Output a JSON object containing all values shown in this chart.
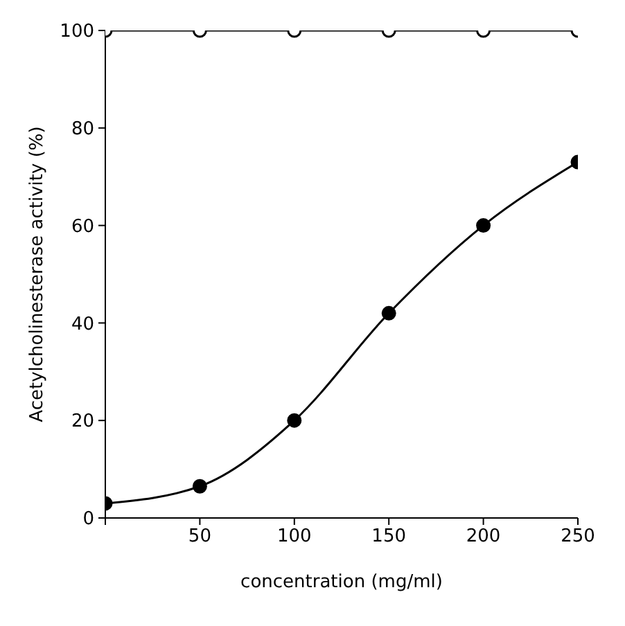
{
  "chart_data": {
    "type": "line",
    "xlabel": "concentration (mg/ml)",
    "ylabel": "Acetylcholinesterase activity (%)",
    "x": [
      0,
      50,
      100,
      150,
      200,
      250
    ],
    "series": [
      {
        "color": "#000000",
        "values": [
          100,
          100,
          100,
          100,
          100,
          100
        ]
      },
      {
        "color": "#000000",
        "values": [
          3,
          6.5,
          20,
          42,
          60,
          73
        ]
      }
    ],
    "xlim": [
      0,
      250
    ],
    "xticks": [
      {
        "value": 0,
        "label": null
      },
      50,
      100,
      150,
      200,
      250
    ],
    "ylim": [
      0,
      100
    ],
    "yticks": [
      0,
      20,
      40,
      60,
      80,
      100
    ],
    "grid": false,
    "legend": false,
    "marker": "circle",
    "line_style": "solid"
  }
}
